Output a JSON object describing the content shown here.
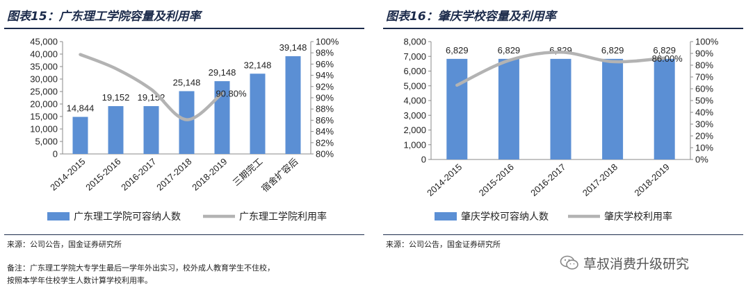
{
  "left": {
    "title": "图表15：广东理工学院容量及利用率",
    "source": "来源：公司公告，国金证券研究所",
    "notes": [
      "备注：广东理工学院大专学生最后一学年外出实习，校外成人教育学生不住校，",
      "按照本学年住校学生人数计算学校利用率。"
    ]
  },
  "right": {
    "title": "图表16：肇庆学校容量及利用率",
    "source": "来源：公司公告，国金证券研究所"
  },
  "watermark": {
    "text": "草叔消费升级研究",
    "icon": "wechat-icon"
  },
  "colors": {
    "bar": "#5b8fd4",
    "line": "#b3b3b3",
    "rule": "#1b2a4a"
  },
  "chart_data": [
    {
      "type": "bar",
      "categories": [
        "2014-2015",
        "2015-2016",
        "2016-2017",
        "2017-2018",
        "2018-2019",
        "三期完工",
        "宿舍扩容后"
      ],
      "series": [
        {
          "name": "广东理工学院可容纳人数",
          "type": "bar",
          "axis": "left",
          "values": [
            14844,
            19152,
            19152,
            25148,
            29148,
            32148,
            39148
          ]
        },
        {
          "name": "广东理工学院利用率",
          "type": "line",
          "axis": "right",
          "values": [
            0.977,
            0.952,
            0.915,
            0.861,
            0.908,
            null,
            null
          ]
        }
      ],
      "bar_labels": [
        "14,844",
        "19,152",
        "19,152",
        "25,148",
        "29,148",
        "32,148",
        "39,148"
      ],
      "line_labels": [
        "",
        "",
        "",
        "",
        "90.80%",
        "",
        ""
      ],
      "ylim": [
        0,
        45000
      ],
      "y2lim": [
        0.8,
        1.0
      ],
      "yticks": [
        "0",
        "5,000",
        "10,000",
        "15,000",
        "20,000",
        "25,000",
        "30,000",
        "35,000",
        "40,000",
        "45,000"
      ],
      "y2ticks": [
        "80%",
        "82%",
        "84%",
        "86%",
        "88%",
        "90%",
        "92%",
        "94%",
        "96%",
        "98%",
        "100%"
      ],
      "legend": "bottom"
    },
    {
      "type": "bar",
      "categories": [
        "2014-2015",
        "2015-2016",
        "2016-2017",
        "2017-2018",
        "2018-2019"
      ],
      "series": [
        {
          "name": "肇庆学校可容纳人数",
          "type": "bar",
          "axis": "left",
          "values": [
            6829,
            6829,
            6829,
            6829,
            6829
          ]
        },
        {
          "name": "肇庆学校利用率",
          "type": "line",
          "axis": "right",
          "values": [
            0.63,
            0.84,
            0.91,
            0.83,
            0.86
          ]
        }
      ],
      "bar_labels": [
        "6,829",
        "6,829",
        "6,829",
        "6,829",
        "6,829"
      ],
      "line_labels": [
        "",
        "",
        "",
        "",
        "86.00%"
      ],
      "ylim": [
        0,
        8000
      ],
      "y2lim": [
        0,
        1.0
      ],
      "yticks": [
        "0",
        "1,000",
        "2,000",
        "3,000",
        "4,000",
        "5,000",
        "6,000",
        "7,000",
        "8,000"
      ],
      "y2ticks": [
        "0%",
        "10%",
        "20%",
        "30%",
        "40%",
        "50%",
        "60%",
        "70%",
        "80%",
        "90%",
        "100%"
      ],
      "legend": "bottom"
    }
  ]
}
